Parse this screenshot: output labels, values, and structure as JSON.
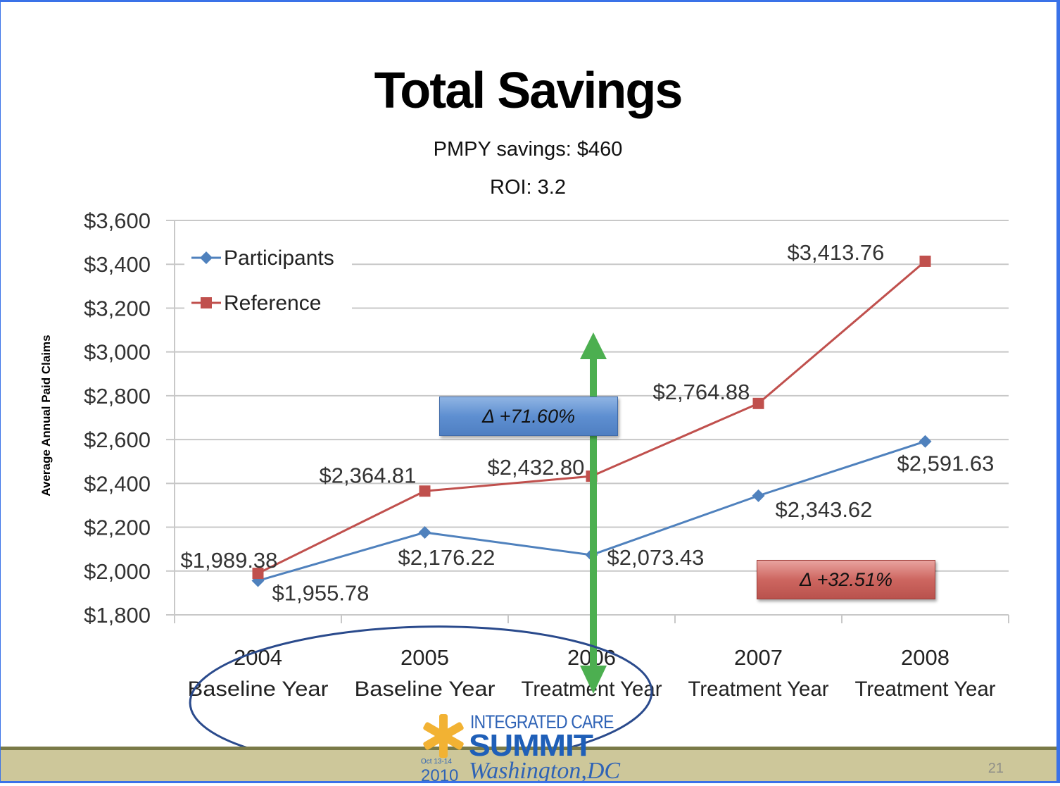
{
  "slide": {
    "title": "Total Savings",
    "pmpy": "PMPY savings: $460",
    "roi": "ROI: 3.2",
    "page_number": "21",
    "logo": {
      "line1": "INTEGRATED CARE",
      "line2": "SUMMIT",
      "line3": "Washington,DC",
      "year": "2010",
      "date": "Oct 13-14"
    },
    "delta_participants": "Δ +32.51%",
    "delta_reference": "Δ +71.60%"
  },
  "colors": {
    "participants": "#4f81bd",
    "reference": "#c0504d",
    "arrow": "#4caf50",
    "ellipse": "#2a4a8c",
    "frame": "#3a72e8"
  },
  "chart_data": {
    "type": "line",
    "title": "Total Savings",
    "ylabel": "Average Annual Paid Claims",
    "xlabel": "",
    "ylim": [
      1800,
      3600
    ],
    "yticks": [
      1800,
      2000,
      2200,
      2400,
      2600,
      2800,
      3000,
      3200,
      3400,
      3600
    ],
    "ytick_labels": [
      "$1,800",
      "$2,000",
      "$2,200",
      "$2,400",
      "$2,600",
      "$2,800",
      "$3,000",
      "$3,200",
      "$3,400",
      "$3,600"
    ],
    "categories": [
      "2004",
      "2005",
      "2006",
      "2007",
      "2008"
    ],
    "category_sublabels": [
      "Baseline Year",
      "Baseline Year",
      "Treatment Year",
      "Treatment Year",
      "Treatment Year"
    ],
    "grid": true,
    "legend_position": "top-left",
    "series": [
      {
        "name": "Participants",
        "marker": "diamond",
        "values": [
          1955.78,
          2176.22,
          2073.43,
          2343.62,
          2591.63
        ],
        "labels": [
          "$1,955.78",
          "$2,176.22",
          "$2,073.43",
          "$2,343.62",
          "$2,591.63"
        ]
      },
      {
        "name": "Reference",
        "marker": "square",
        "values": [
          1989.38,
          2364.81,
          2432.8,
          2764.88,
          3413.76
        ],
        "labels": [
          "$1,989.38",
          "$2,364.81",
          "$2,432.80",
          "$2,764.88",
          "$3,413.76"
        ]
      }
    ],
    "annotations": [
      "Δ +71.60%",
      "Δ +32.51%"
    ]
  }
}
